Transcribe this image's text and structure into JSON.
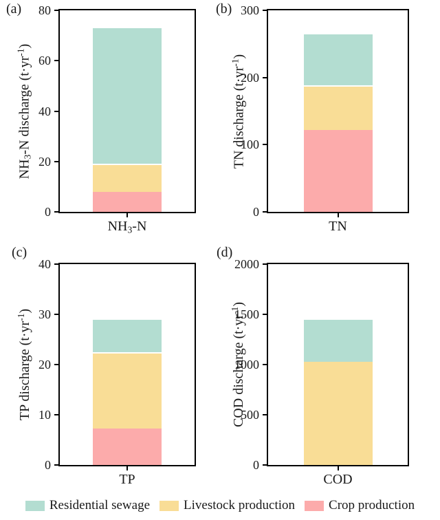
{
  "figure": {
    "background": "#ffffff",
    "text_color": "#1a1a1a"
  },
  "legend": {
    "position": "bottom",
    "items": [
      {
        "label": "Residential sewage",
        "color": "#b3ddd1"
      },
      {
        "label": "Livestock production",
        "color": "#f9dd96"
      },
      {
        "label": "Crop production",
        "color": "#fcabab"
      }
    ]
  },
  "chart_data": [
    {
      "type": "bar",
      "stacked": true,
      "panel_label": "(a)",
      "category": "NH₃-N",
      "category_parts": [
        {
          "t": "NH"
        },
        {
          "t": "3",
          "sub": true
        },
        {
          "t": "-N"
        }
      ],
      "ylabel": "NH₃-N discharge (t·yr⁻¹)",
      "ylabel_parts": [
        {
          "t": "NH"
        },
        {
          "t": "3",
          "sub": true
        },
        {
          "t": "-N discharge (t·yr"
        },
        {
          "t": "-1",
          "sup": true
        },
        {
          "t": ")"
        }
      ],
      "ylim": [
        0,
        80
      ],
      "yticks": [
        0,
        20,
        40,
        60,
        80
      ],
      "grid": false,
      "series": [
        {
          "name": "Crop production",
          "value": 8,
          "color": "#fcabab"
        },
        {
          "name": "Livestock production",
          "value": 11,
          "color": "#f9dd96"
        },
        {
          "name": "Residential sewage",
          "value": 54,
          "color": "#b3ddd1"
        }
      ],
      "total": 73
    },
    {
      "type": "bar",
      "stacked": true,
      "panel_label": "(b)",
      "category": "TN",
      "category_parts": [
        {
          "t": "TN"
        }
      ],
      "ylabel": "TN discharge (t·yr⁻¹)",
      "ylabel_parts": [
        {
          "t": "TN discharge (t·yr"
        },
        {
          "t": "-1",
          "sup": true
        },
        {
          "t": ")"
        }
      ],
      "ylim": [
        0,
        300
      ],
      "yticks": [
        0,
        100,
        200,
        300
      ],
      "grid": false,
      "series": [
        {
          "name": "Crop production",
          "value": 122,
          "color": "#fcabab"
        },
        {
          "name": "Livestock production",
          "value": 66,
          "color": "#f9dd96"
        },
        {
          "name": "Residential sewage",
          "value": 77,
          "color": "#b3ddd1"
        }
      ],
      "total": 265
    },
    {
      "type": "bar",
      "stacked": true,
      "panel_label": "(c)",
      "category": "TP",
      "category_parts": [
        {
          "t": "TP"
        }
      ],
      "ylabel": "TP discharge (t·yr⁻¹)",
      "ylabel_parts": [
        {
          "t": "TP discharge (t·yr"
        },
        {
          "t": "-1",
          "sup": true
        },
        {
          "t": ")"
        }
      ],
      "ylim": [
        0,
        40
      ],
      "yticks": [
        0,
        10,
        20,
        30,
        40
      ],
      "grid": false,
      "series": [
        {
          "name": "Crop production",
          "value": 7.3,
          "color": "#fcabab"
        },
        {
          "name": "Livestock production",
          "value": 15.1,
          "color": "#f9dd96"
        },
        {
          "name": "Residential sewage",
          "value": 6.6,
          "color": "#b3ddd1"
        }
      ],
      "total": 29
    },
    {
      "type": "bar",
      "stacked": true,
      "panel_label": "(d)",
      "category": "COD",
      "category_parts": [
        {
          "t": "COD"
        }
      ],
      "ylabel": "COD discharge (t·yr⁻¹)",
      "ylabel_parts": [
        {
          "t": "COD discharge (t·yr"
        },
        {
          "t": "-1",
          "sup": true
        },
        {
          "t": ")"
        }
      ],
      "ylim": [
        0,
        2000
      ],
      "yticks": [
        0,
        500,
        1000,
        1500,
        2000
      ],
      "grid": false,
      "series": [
        {
          "name": "Crop production",
          "value": 0,
          "color": "#fcabab"
        },
        {
          "name": "Livestock production",
          "value": 1025,
          "color": "#f9dd96"
        },
        {
          "name": "Residential sewage",
          "value": 425,
          "color": "#b3ddd1"
        }
      ],
      "total": 1450
    }
  ]
}
